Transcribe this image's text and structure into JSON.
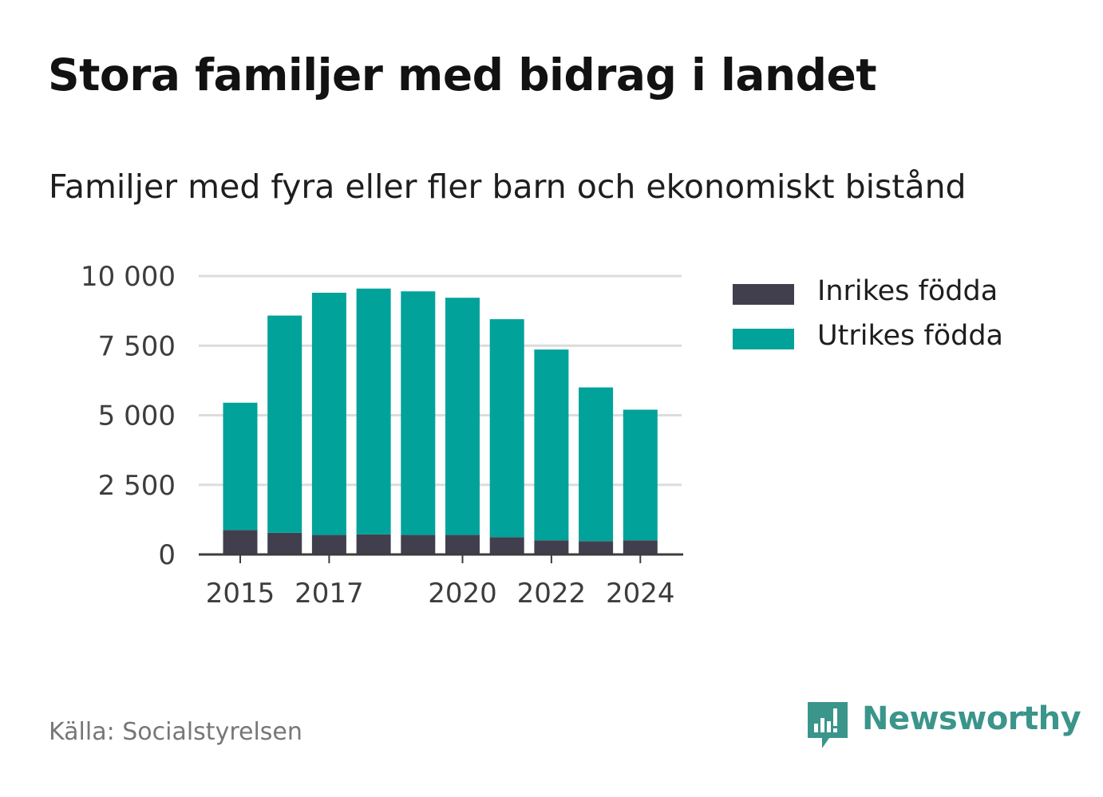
{
  "header": {
    "title": "Stora familjer med bidrag i landet",
    "subtitle": "Familjer med fyra eller fler barn och ekonomiskt bistånd"
  },
  "chart_data": {
    "type": "bar",
    "stacked": true,
    "categories": [
      "2015",
      "2016",
      "2017",
      "2018",
      "2019",
      "2020",
      "2021",
      "2022",
      "2023",
      "2024"
    ],
    "x_tick_labels": [
      "2015",
      "2017",
      "2020",
      "2022",
      "2024"
    ],
    "y_ticks": [
      0,
      2500,
      5000,
      7500,
      10000
    ],
    "y_tick_labels": [
      "0",
      "2 500",
      "5 000",
      "7 500",
      "10 000"
    ],
    "ylim": [
      0,
      10000
    ],
    "grid": true,
    "legend_position": "right",
    "series": [
      {
        "name": "Inrikes födda",
        "color": "#413f4d",
        "values": [
          880,
          780,
          700,
          720,
          700,
          700,
          620,
          510,
          480,
          510
        ]
      },
      {
        "name": "Utrikes födda",
        "color": "#00a29a",
        "values": [
          4570,
          7800,
          8700,
          8830,
          8750,
          8520,
          7830,
          6850,
          5520,
          4690
        ]
      }
    ]
  },
  "footer": {
    "source": "Källa: Socialstyrelsen",
    "brand": "Newsworthy",
    "brand_color": "#3a958b",
    "logo_icon": "newsworthy-logo-icon"
  }
}
